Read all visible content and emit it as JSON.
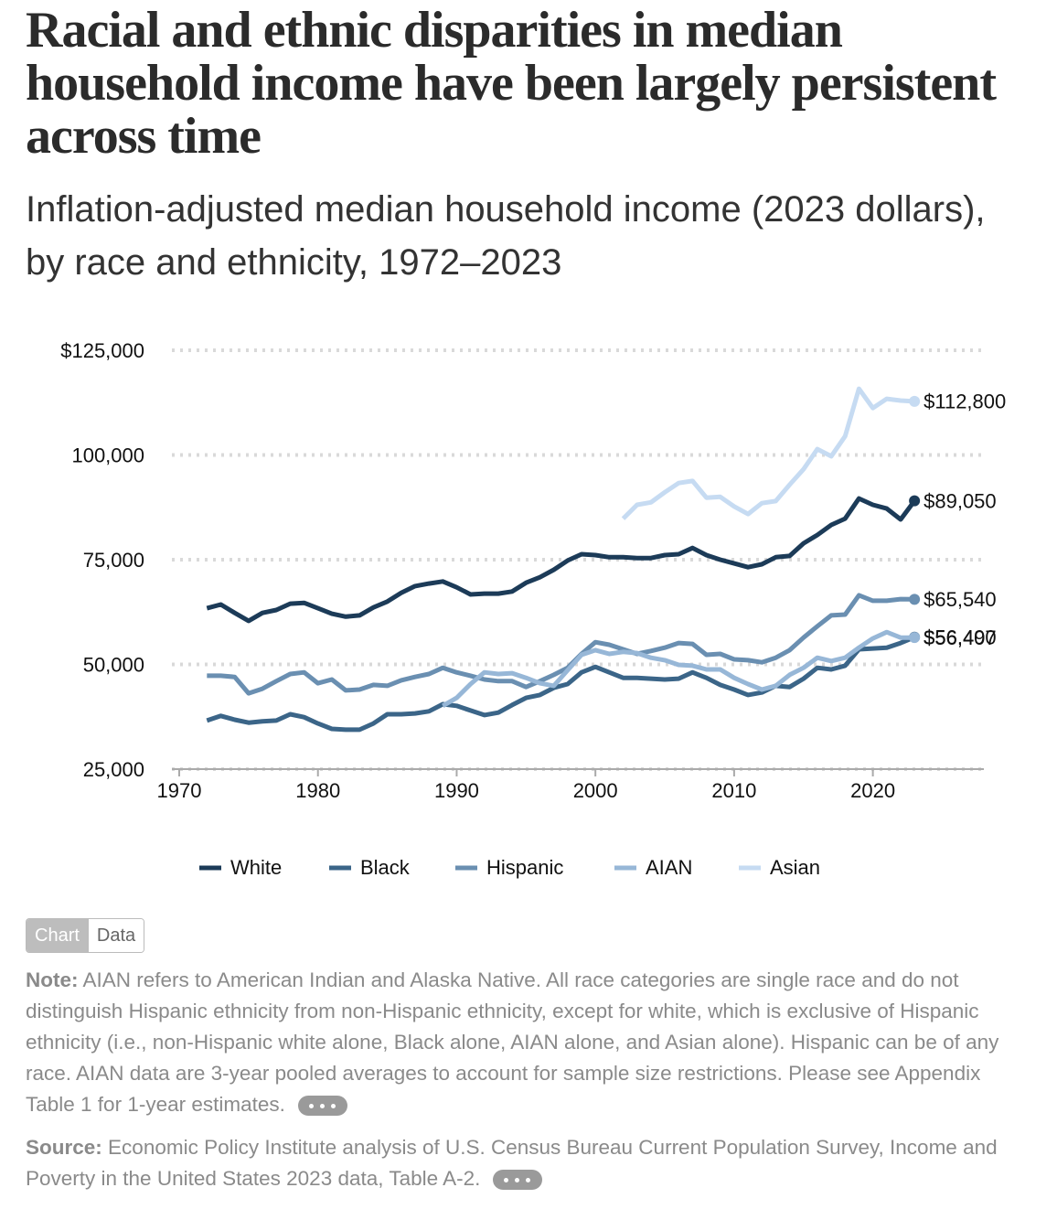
{
  "chart_data": {
    "type": "line",
    "title": "Racial and ethnic disparities in median household income have been largely persistent across time",
    "subtitle": "Inflation-adjusted median household income (2023 dollars), by race and ethnicity, 1972–2023",
    "x": [
      1972,
      1973,
      1974,
      1975,
      1976,
      1977,
      1978,
      1979,
      1980,
      1981,
      1982,
      1983,
      1984,
      1985,
      1986,
      1987,
      1988,
      1989,
      1990,
      1991,
      1992,
      1993,
      1994,
      1995,
      1996,
      1997,
      1998,
      1999,
      2000,
      2001,
      2002,
      2003,
      2004,
      2005,
      2006,
      2007,
      2008,
      2009,
      2010,
      2011,
      2012,
      2013,
      2014,
      2015,
      2016,
      2017,
      2018,
      2019,
      2020,
      2021,
      2022,
      2023
    ],
    "xlim": [
      1970,
      2028
    ],
    "xticks": [
      1970,
      1980,
      1990,
      2000,
      2010,
      2020
    ],
    "ylim": [
      25000,
      125000
    ],
    "yticks": [
      {
        "value": 125000,
        "label": "$125,000"
      },
      {
        "value": 100000,
        "label": "100,000"
      },
      {
        "value": 75000,
        "label": "75,000"
      },
      {
        "value": 50000,
        "label": "50,000"
      },
      {
        "value": 25000,
        "label": "25,000"
      }
    ],
    "grid": true,
    "legend": "bottom",
    "series": [
      {
        "name": "White",
        "color": "#1c3b58",
        "values": [
          63400,
          64300,
          62300,
          60400,
          62300,
          63000,
          64500,
          64700,
          63400,
          62100,
          61400,
          61700,
          63600,
          65000,
          67100,
          68700,
          69300,
          69800,
          68400,
          66700,
          66900,
          66900,
          67400,
          69500,
          70800,
          72600,
          74800,
          76300,
          76100,
          75600,
          75600,
          75400,
          75400,
          76100,
          76300,
          77800,
          76100,
          75000,
          74100,
          73200,
          73900,
          75600,
          75900,
          78900,
          80900,
          83300,
          84800,
          89600,
          88100,
          87200,
          84600,
          89050
        ],
        "value_labels": [
          null,
          null,
          null,
          null,
          null,
          null,
          null,
          null,
          null,
          null,
          null,
          null,
          null,
          null,
          null,
          null,
          null,
          null,
          null,
          null,
          null,
          null,
          null,
          null,
          null,
          null,
          null,
          null,
          null,
          null,
          null,
          null,
          null,
          null,
          null,
          null,
          null,
          null,
          null,
          null,
          null,
          null,
          null,
          null,
          null,
          null,
          null,
          null,
          null,
          null,
          null,
          "$89,050"
        ]
      },
      {
        "name": "Black",
        "color": "#3b6588",
        "values": [
          36600,
          37700,
          36800,
          36100,
          36400,
          36600,
          38100,
          37400,
          35900,
          34600,
          34400,
          34400,
          35900,
          38100,
          38100,
          38300,
          38800,
          40500,
          40100,
          39000,
          37900,
          38500,
          40300,
          42000,
          42700,
          44400,
          45300,
          48100,
          49400,
          48100,
          46800,
          46800,
          46600,
          46400,
          46600,
          48100,
          46800,
          45100,
          44000,
          42700,
          43300,
          44900,
          44600,
          46600,
          49200,
          48800,
          49700,
          53600,
          53800,
          54000,
          55100,
          56490
        ],
        "value_labels": [
          null,
          null,
          null,
          null,
          null,
          null,
          null,
          null,
          null,
          null,
          null,
          null,
          null,
          null,
          null,
          null,
          null,
          null,
          null,
          null,
          null,
          null,
          null,
          null,
          null,
          null,
          null,
          null,
          null,
          null,
          null,
          null,
          null,
          null,
          null,
          null,
          null,
          null,
          null,
          null,
          null,
          null,
          null,
          null,
          null,
          null,
          null,
          null,
          null,
          null,
          null,
          "$56,490"
        ]
      },
      {
        "name": "Hispanic",
        "color": "#6a8fb1",
        "values": [
          47300,
          47300,
          47000,
          43100,
          44200,
          46000,
          47700,
          48100,
          45500,
          46400,
          43800,
          44000,
          45100,
          44900,
          46200,
          47000,
          47700,
          49200,
          48100,
          47300,
          46400,
          46000,
          46000,
          44600,
          46000,
          47500,
          49200,
          52500,
          55300,
          54700,
          53600,
          52500,
          53200,
          54000,
          55100,
          54900,
          52300,
          52500,
          51200,
          51000,
          50500,
          51600,
          53400,
          56400,
          59100,
          61700,
          61900,
          66500,
          65200,
          65200,
          65600,
          65540
        ],
        "value_labels": [
          null,
          null,
          null,
          null,
          null,
          null,
          null,
          null,
          null,
          null,
          null,
          null,
          null,
          null,
          null,
          null,
          null,
          null,
          null,
          null,
          null,
          null,
          null,
          null,
          null,
          null,
          null,
          null,
          null,
          null,
          null,
          null,
          null,
          null,
          null,
          null,
          null,
          null,
          null,
          null,
          null,
          null,
          null,
          null,
          null,
          null,
          null,
          null,
          null,
          null,
          null,
          "$65,540"
        ]
      },
      {
        "name": "AIAN",
        "color": "#97b7d7",
        "values": [
          null,
          null,
          null,
          null,
          null,
          null,
          null,
          null,
          null,
          null,
          null,
          null,
          null,
          null,
          null,
          null,
          null,
          40100,
          42000,
          45300,
          48100,
          47700,
          47900,
          46800,
          45500,
          44900,
          48600,
          52300,
          53400,
          52500,
          53000,
          52700,
          51600,
          51000,
          49900,
          49700,
          48800,
          48800,
          46800,
          45300,
          44000,
          44900,
          47500,
          49200,
          51600,
          50800,
          51600,
          54000,
          56200,
          57700,
          56400,
          56407
        ],
        "value_labels": [
          null,
          null,
          null,
          null,
          null,
          null,
          null,
          null,
          null,
          null,
          null,
          null,
          null,
          null,
          null,
          null,
          null,
          null,
          null,
          null,
          null,
          null,
          null,
          null,
          null,
          null,
          null,
          null,
          null,
          null,
          null,
          null,
          null,
          null,
          null,
          null,
          null,
          null,
          null,
          null,
          null,
          null,
          null,
          null,
          null,
          null,
          null,
          null,
          null,
          null,
          null,
          "$56,407"
        ]
      },
      {
        "name": "Asian",
        "color": "#c6dbf2",
        "values": [
          null,
          null,
          null,
          null,
          null,
          null,
          null,
          null,
          null,
          null,
          null,
          null,
          null,
          null,
          null,
          null,
          null,
          null,
          null,
          null,
          null,
          null,
          null,
          null,
          null,
          null,
          null,
          null,
          null,
          null,
          84800,
          88100,
          88700,
          91100,
          93300,
          93800,
          89800,
          90000,
          87700,
          85900,
          88500,
          89000,
          92900,
          96600,
          101400,
          99700,
          104500,
          115800,
          111200,
          113400,
          113000,
          112800
        ],
        "value_labels": [
          null,
          null,
          null,
          null,
          null,
          null,
          null,
          null,
          null,
          null,
          null,
          null,
          null,
          null,
          null,
          null,
          null,
          null,
          null,
          null,
          null,
          null,
          null,
          null,
          null,
          null,
          null,
          null,
          null,
          null,
          null,
          null,
          null,
          null,
          null,
          null,
          null,
          null,
          null,
          null,
          null,
          null,
          null,
          null,
          null,
          null,
          null,
          null,
          null,
          null,
          null,
          "$112,800"
        ]
      }
    ]
  },
  "controls": {
    "chart": "Chart",
    "data": "Data"
  },
  "notes": {
    "note_label": "Note:",
    "note": "AIAN refers to American Indian and Alaska Native. All race categories are single race and do not distinguish Hispanic ethnicity from non-Hispanic ethnicity, except for white, which is exclusive of Hispanic ethnicity (i.e., non-Hispanic white alone, Black alone, AIAN alone, and Asian alone). Hispanic can be of any race. AIAN data are 3-year pooled averages to account for sample size restrictions. Please see Appendix Table 1 for 1-year estimates.",
    "source_label": "Source:",
    "source": "Economic Policy Institute analysis of U.S. Census Bureau Current Population Survey, Income and Poverty in the United States 2023 data, Table A-2."
  }
}
